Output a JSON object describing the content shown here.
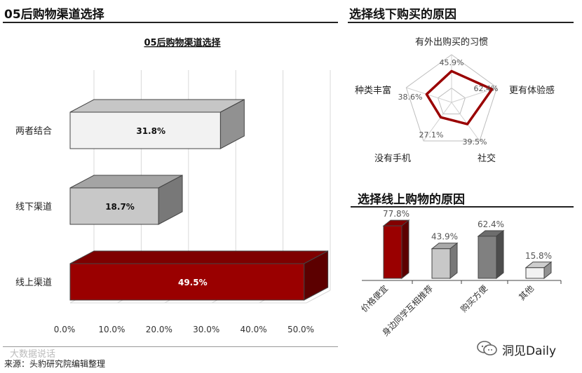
{
  "left_panel": {
    "header_title": "05后购物渠道选择"
  },
  "right_top_panel": {
    "header_title": "选择线下购买的原因"
  },
  "right_bottom_panel": {
    "header_title": "选择线上购物的原因"
  },
  "footer": {
    "source": "来源：头豹研究院编辑整理",
    "watermark": "大数据说话",
    "brand": "洞见Daily"
  },
  "colors": {
    "dark_red": "#9a0000",
    "light_gray": "#f2f2f2",
    "mid_gray": "#c8c8c8",
    "dark_gray": "#808080"
  },
  "chart_data": [
    {
      "type": "bar",
      "orientation": "horizontal",
      "title": "05后购物渠道选择",
      "categories": [
        "两者结合",
        "线下渠道",
        "线上渠道"
      ],
      "values": [
        31.8,
        18.7,
        49.5
      ],
      "value_labels": [
        "31.8%",
        "18.7%",
        "49.5%"
      ],
      "bar_colors": [
        "#f2f2f2",
        "#c8c8c8",
        "#9a0000"
      ],
      "x_ticks": [
        "0.0%",
        "10.0%",
        "20.0%",
        "30.0%",
        "40.0%",
        "50.0%"
      ],
      "xlim": [
        0,
        50
      ],
      "grid": true,
      "style": "3d"
    },
    {
      "type": "radar",
      "axes": [
        "有外出购买的习惯",
        "更有体验感",
        "社交",
        "没有手机",
        "种类丰富"
      ],
      "values": [
        45.9,
        62.4,
        39.5,
        27.1,
        38.6
      ],
      "value_labels": [
        "45.9%",
        "62.4%",
        "39.5%",
        "27.1%",
        "38.6%"
      ],
      "line_color": "#9a0000"
    },
    {
      "type": "bar",
      "orientation": "vertical",
      "categories": [
        "价格便宜",
        "身边同学互相推荐",
        "购买方便",
        "其他"
      ],
      "values": [
        77.8,
        43.9,
        62.4,
        15.8
      ],
      "value_labels": [
        "77.8%",
        "43.9%",
        "62.4%",
        "15.8%"
      ],
      "bar_colors": [
        "#9a0000",
        "#c8c8c8",
        "#808080",
        "#f2f2f2"
      ],
      "style": "3d"
    }
  ]
}
